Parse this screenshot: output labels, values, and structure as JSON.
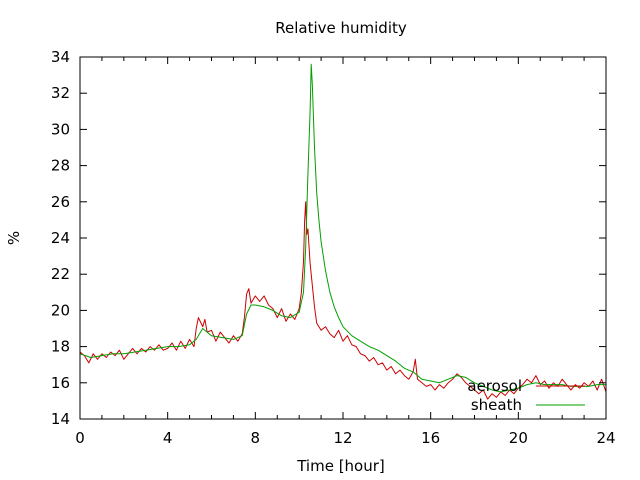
{
  "chart_data": {
    "type": "line",
    "title": "Relative humidity",
    "xlabel": "Time [hour]",
    "ylabel": "%",
    "xlim": [
      0,
      24
    ],
    "ylim": [
      14,
      34
    ],
    "xticks": [
      0,
      4,
      8,
      12,
      16,
      20,
      24
    ],
    "yticks": [
      14,
      16,
      18,
      20,
      22,
      24,
      26,
      28,
      30,
      32,
      34
    ],
    "grid": false,
    "legend": "bottom-right",
    "series": [
      {
        "name": "aerosol",
        "color": "#cc0000",
        "points": [
          [
            0,
            17.7
          ],
          [
            0.2,
            17.5
          ],
          [
            0.4,
            17.1
          ],
          [
            0.6,
            17.6
          ],
          [
            0.8,
            17.3
          ],
          [
            1,
            17.6
          ],
          [
            1.2,
            17.4
          ],
          [
            1.4,
            17.7
          ],
          [
            1.6,
            17.5
          ],
          [
            1.8,
            17.8
          ],
          [
            2,
            17.3
          ],
          [
            2.2,
            17.6
          ],
          [
            2.4,
            17.9
          ],
          [
            2.6,
            17.6
          ],
          [
            2.8,
            17.9
          ],
          [
            3,
            17.7
          ],
          [
            3.2,
            18.0
          ],
          [
            3.4,
            17.8
          ],
          [
            3.6,
            18.1
          ],
          [
            3.8,
            17.8
          ],
          [
            4,
            17.9
          ],
          [
            4.2,
            18.2
          ],
          [
            4.4,
            17.8
          ],
          [
            4.6,
            18.3
          ],
          [
            4.8,
            17.9
          ],
          [
            5,
            18.4
          ],
          [
            5.2,
            18.0
          ],
          [
            5.3,
            19.0
          ],
          [
            5.4,
            19.6
          ],
          [
            5.6,
            19.1
          ],
          [
            5.7,
            19.5
          ],
          [
            5.8,
            18.8
          ],
          [
            6,
            18.9
          ],
          [
            6.2,
            18.3
          ],
          [
            6.4,
            18.8
          ],
          [
            6.6,
            18.5
          ],
          [
            6.8,
            18.2
          ],
          [
            7,
            18.6
          ],
          [
            7.2,
            18.3
          ],
          [
            7.4,
            18.7
          ],
          [
            7.5,
            19.6
          ],
          [
            7.6,
            20.9
          ],
          [
            7.7,
            21.2
          ],
          [
            7.8,
            20.4
          ],
          [
            8,
            20.8
          ],
          [
            8.2,
            20.5
          ],
          [
            8.4,
            20.8
          ],
          [
            8.6,
            20.3
          ],
          [
            8.8,
            20.1
          ],
          [
            9,
            19.6
          ],
          [
            9.2,
            20.1
          ],
          [
            9.4,
            19.4
          ],
          [
            9.6,
            19.8
          ],
          [
            9.8,
            19.5
          ],
          [
            10,
            20.1
          ],
          [
            10.1,
            21.0
          ],
          [
            10.2,
            22.7
          ],
          [
            10.25,
            24.9
          ],
          [
            10.3,
            26.0
          ],
          [
            10.35,
            24.2
          ],
          [
            10.4,
            24.5
          ],
          [
            10.5,
            22.6
          ],
          [
            10.6,
            21.4
          ],
          [
            10.7,
            20.2
          ],
          [
            10.8,
            19.3
          ],
          [
            11,
            18.9
          ],
          [
            11.2,
            19.1
          ],
          [
            11.4,
            18.7
          ],
          [
            11.6,
            18.5
          ],
          [
            11.8,
            18.9
          ],
          [
            12,
            18.3
          ],
          [
            12.2,
            18.6
          ],
          [
            12.4,
            18.1
          ],
          [
            12.6,
            18.0
          ],
          [
            12.8,
            17.6
          ],
          [
            13,
            17.5
          ],
          [
            13.2,
            17.2
          ],
          [
            13.4,
            17.4
          ],
          [
            13.6,
            17.0
          ],
          [
            13.8,
            17.1
          ],
          [
            14,
            16.7
          ],
          [
            14.2,
            16.9
          ],
          [
            14.4,
            16.5
          ],
          [
            14.6,
            16.7
          ],
          [
            14.8,
            16.4
          ],
          [
            15,
            16.2
          ],
          [
            15.2,
            16.6
          ],
          [
            15.3,
            17.3
          ],
          [
            15.4,
            16.2
          ],
          [
            15.6,
            16.0
          ],
          [
            15.8,
            15.8
          ],
          [
            16,
            15.9
          ],
          [
            16.2,
            15.6
          ],
          [
            16.4,
            15.9
          ],
          [
            16.6,
            15.7
          ],
          [
            16.8,
            16.0
          ],
          [
            17,
            16.2
          ],
          [
            17.2,
            16.5
          ],
          [
            17.4,
            16.3
          ],
          [
            17.6,
            16.0
          ],
          [
            17.8,
            15.8
          ],
          [
            18,
            15.6
          ],
          [
            18.2,
            15.4
          ],
          [
            18.4,
            15.6
          ],
          [
            18.6,
            15.1
          ],
          [
            18.8,
            15.4
          ],
          [
            19,
            15.2
          ],
          [
            19.2,
            15.5
          ],
          [
            19.4,
            15.3
          ],
          [
            19.6,
            15.6
          ],
          [
            19.8,
            15.4
          ],
          [
            20,
            15.7
          ],
          [
            20.2,
            15.9
          ],
          [
            20.4,
            16.2
          ],
          [
            20.6,
            16.0
          ],
          [
            20.8,
            16.4
          ],
          [
            21,
            15.9
          ],
          [
            21.2,
            16.1
          ],
          [
            21.4,
            15.7
          ],
          [
            21.6,
            16.0
          ],
          [
            21.8,
            15.8
          ],
          [
            22,
            16.2
          ],
          [
            22.2,
            15.9
          ],
          [
            22.4,
            15.6
          ],
          [
            22.6,
            15.9
          ],
          [
            22.8,
            15.7
          ],
          [
            23,
            16.0
          ],
          [
            23.2,
            15.8
          ],
          [
            23.4,
            16.1
          ],
          [
            23.6,
            15.6
          ],
          [
            23.8,
            16.2
          ],
          [
            24,
            15.5
          ]
        ]
      },
      {
        "name": "sheath",
        "color": "#00a000",
        "points": [
          [
            0,
            17.6
          ],
          [
            0.5,
            17.4
          ],
          [
            1,
            17.5
          ],
          [
            1.5,
            17.6
          ],
          [
            2,
            17.6
          ],
          [
            2.5,
            17.7
          ],
          [
            3,
            17.8
          ],
          [
            3.5,
            17.9
          ],
          [
            4,
            18.0
          ],
          [
            4.5,
            18.0
          ],
          [
            5,
            18.1
          ],
          [
            5.3,
            18.4
          ],
          [
            5.6,
            19.0
          ],
          [
            6,
            18.6
          ],
          [
            6.5,
            18.5
          ],
          [
            7,
            18.4
          ],
          [
            7.4,
            18.6
          ],
          [
            7.6,
            19.8
          ],
          [
            7.8,
            20.3
          ],
          [
            8,
            20.3
          ],
          [
            8.4,
            20.2
          ],
          [
            8.8,
            20.0
          ],
          [
            9.2,
            19.7
          ],
          [
            9.6,
            19.6
          ],
          [
            10,
            19.9
          ],
          [
            10.2,
            21.0
          ],
          [
            10.3,
            23.5
          ],
          [
            10.4,
            27.5
          ],
          [
            10.5,
            31.0
          ],
          [
            10.55,
            33.6
          ],
          [
            10.6,
            32.5
          ],
          [
            10.7,
            29.0
          ],
          [
            10.8,
            26.5
          ],
          [
            10.9,
            25.0
          ],
          [
            11,
            23.8
          ],
          [
            11.2,
            22.2
          ],
          [
            11.4,
            21.0
          ],
          [
            11.6,
            20.2
          ],
          [
            11.8,
            19.6
          ],
          [
            12,
            19.1
          ],
          [
            12.4,
            18.6
          ],
          [
            12.8,
            18.3
          ],
          [
            13.2,
            18.0
          ],
          [
            13.6,
            17.8
          ],
          [
            14,
            17.5
          ],
          [
            14.4,
            17.2
          ],
          [
            14.8,
            16.8
          ],
          [
            15.2,
            16.6
          ],
          [
            15.6,
            16.2
          ],
          [
            16,
            16.1
          ],
          [
            16.4,
            16.0
          ],
          [
            16.8,
            16.2
          ],
          [
            17.2,
            16.4
          ],
          [
            17.6,
            16.3
          ],
          [
            18,
            16.0
          ],
          [
            18.4,
            15.8
          ],
          [
            18.8,
            15.6
          ],
          [
            19.2,
            15.5
          ],
          [
            19.6,
            15.6
          ],
          [
            20,
            15.7
          ],
          [
            20.4,
            15.9
          ],
          [
            20.8,
            16.0
          ],
          [
            21.2,
            15.9
          ],
          [
            21.6,
            15.9
          ],
          [
            22,
            15.9
          ],
          [
            22.4,
            15.8
          ],
          [
            22.8,
            15.8
          ],
          [
            23.2,
            15.8
          ],
          [
            23.6,
            15.9
          ],
          [
            24,
            15.9
          ]
        ]
      }
    ]
  }
}
